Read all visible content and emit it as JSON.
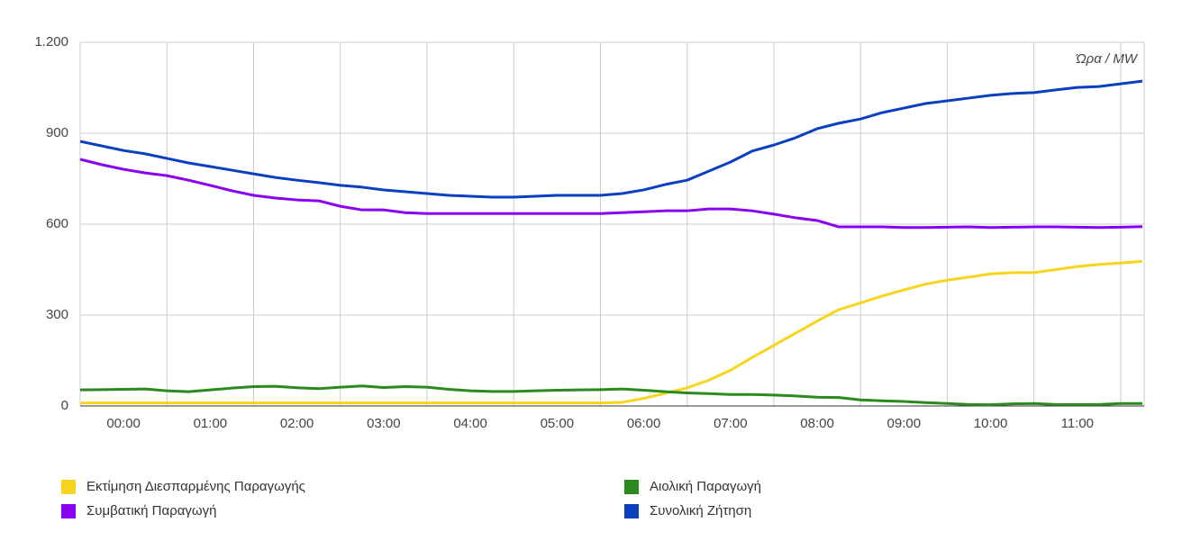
{
  "chart_data": {
    "type": "line",
    "annotation": "Ώρα / MW",
    "categories": [
      null,
      null,
      "00:00",
      null,
      null,
      null,
      "01:00",
      null,
      null,
      null,
      "02:00",
      null,
      null,
      null,
      "03:00",
      null,
      null,
      null,
      "04:00",
      null,
      null,
      null,
      "05:00",
      null,
      null,
      null,
      "06:00",
      null,
      null,
      null,
      "07:00",
      null,
      null,
      null,
      "08:00",
      null,
      null,
      null,
      "09:00",
      null,
      null,
      null,
      "10:00",
      null,
      null,
      null,
      "11:00",
      null,
      null,
      null
    ],
    "ylim": [
      0,
      1200
    ],
    "yticks": [
      0,
      300,
      600,
      900,
      {
        "value": 1200,
        "label": "1.200"
      }
    ],
    "grid": true,
    "series": [
      {
        "name": "Εκτίμηση Διεσπαρμένης Παραγωγής",
        "color": "#f7d51d",
        "values": [
          10,
          10,
          10,
          10,
          10,
          10,
          10,
          10,
          10,
          10,
          10,
          10,
          10,
          10,
          10,
          10,
          10,
          10,
          10,
          10,
          10,
          10,
          10,
          10,
          10,
          12,
          25,
          42,
          60,
          85,
          118,
          160,
          200,
          240,
          280,
          318,
          340,
          363,
          383,
          402,
          415,
          425,
          436,
          440,
          440,
          450,
          460,
          467,
          472,
          477
        ]
      },
      {
        "name": "Συμβατική Παραγωγή",
        "color": "#8a00f0",
        "values": [
          814,
          796,
          781,
          769,
          760,
          745,
          728,
          710,
          695,
          686,
          680,
          677,
          659,
          647,
          647,
          638,
          635,
          635,
          635,
          635,
          635,
          635,
          635,
          635,
          635,
          638,
          641,
          644,
          644,
          650,
          650,
          644,
          633,
          621,
          612,
          591,
          591,
          591,
          589,
          589,
          590,
          591,
          589,
          590,
          591,
          591,
          590,
          589,
          590,
          592
        ]
      },
      {
        "name": "Αιολική Παραγωγή",
        "color": "#2a8a1d",
        "values": [
          53,
          54,
          55,
          56,
          50,
          47,
          53,
          59,
          64,
          65,
          60,
          57,
          62,
          66,
          61,
          64,
          62,
          55,
          50,
          48,
          48,
          50,
          52,
          53,
          54,
          56,
          52,
          47,
          43,
          41,
          38,
          38,
          36,
          33,
          29,
          28,
          20,
          17,
          15,
          11,
          8,
          5,
          4,
          7,
          8,
          5,
          5,
          5,
          8,
          8
        ]
      },
      {
        "name": "Συνολική Ζήτηση",
        "color": "#0a3fc2",
        "values": [
          873,
          858,
          843,
          832,
          817,
          802,
          790,
          778,
          766,
          754,
          745,
          737,
          728,
          722,
          713,
          707,
          701,
          695,
          692,
          689,
          689,
          692,
          695,
          695,
          695,
          701,
          713,
          731,
          745,
          775,
          805,
          841,
          861,
          885,
          915,
          933,
          947,
          968,
          983,
          998,
          1007,
          1016,
          1025,
          1031,
          1034,
          1043,
          1051,
          1054,
          1063,
          1072
        ]
      }
    ],
    "legend": "bottom"
  }
}
